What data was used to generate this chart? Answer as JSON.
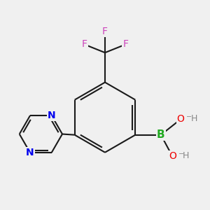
{
  "background_color": "#f0f0f0",
  "bond_color": "#1a1a1a",
  "bond_width": 1.5,
  "atom_colors": {
    "N": "#0000ee",
    "B": "#22aa22",
    "O": "#ee0000",
    "F": "#cc44bb",
    "C": "#1a1a1a",
    "H": "#888888"
  },
  "figsize": [
    3.0,
    3.0
  ],
  "dpi": 100
}
